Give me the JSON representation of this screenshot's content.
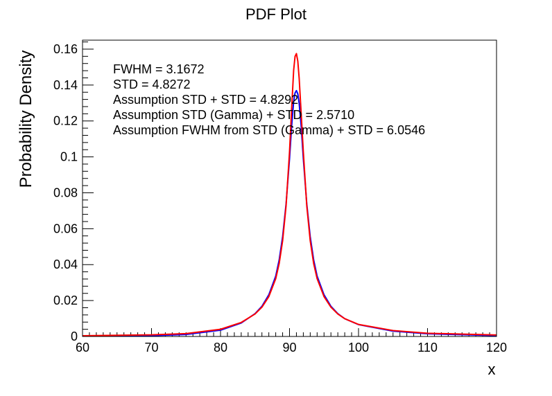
{
  "chart_data": {
    "type": "line",
    "title": "PDF Plot",
    "xlabel": "x",
    "ylabel": "Probability Density",
    "xlim": [
      60,
      120
    ],
    "ylim": [
      0,
      0.165
    ],
    "x_ticks": [
      "60",
      "70",
      "80",
      "90",
      "100",
      "110",
      "120"
    ],
    "y_ticks": [
      "0",
      "0.02",
      "0.04",
      "0.06",
      "0.08",
      "0.1",
      "0.12",
      "0.14",
      "0.16"
    ],
    "annotations": [
      "FWHM = 3.1672",
      "STD = 4.8272",
      "Assumption STD + STD = 4.8292",
      "Assumption STD (Gamma) + STD = 2.5710",
      "Assumption FWHM from STD (Gamma) + STD = 6.0546"
    ],
    "grid": false,
    "series": [
      {
        "color": "#0000ff",
        "x": [
          60,
          70,
          75,
          80,
          83,
          85,
          86,
          87,
          88,
          88.5,
          89,
          89.5,
          90,
          90.3,
          90.6,
          90.8,
          91,
          91.2,
          91.4,
          91.7,
          92,
          92.5,
          93,
          93.5,
          94,
          95,
          96,
          97,
          98,
          100,
          105,
          110,
          120
        ],
        "y": [
          0.0002,
          0.0005,
          0.0011,
          0.0035,
          0.0075,
          0.0127,
          0.0168,
          0.0232,
          0.0336,
          0.0426,
          0.0555,
          0.0738,
          0.099,
          0.1168,
          0.1309,
          0.1356,
          0.1369,
          0.1351,
          0.1298,
          0.1166,
          0.099,
          0.0738,
          0.0555,
          0.0426,
          0.0336,
          0.0232,
          0.0168,
          0.0127,
          0.0099,
          0.0066,
          0.003,
          0.0015,
          0.0005
        ]
      },
      {
        "color": "#ff0000",
        "x": [
          60,
          70,
          75,
          80,
          83,
          85,
          86,
          87,
          88,
          88.5,
          89,
          89.5,
          90,
          90.3,
          90.6,
          90.8,
          91,
          91.2,
          91.4,
          91.7,
          92,
          92.5,
          93,
          93.5,
          94,
          95,
          96,
          97,
          98,
          100,
          105,
          110,
          120
        ],
        "y": [
          0.0004,
          0.0009,
          0.0016,
          0.004,
          0.0078,
          0.0125,
          0.0163,
          0.0222,
          0.0322,
          0.0406,
          0.0533,
          0.0727,
          0.1028,
          0.1265,
          0.1483,
          0.1559,
          0.1575,
          0.1533,
          0.1437,
          0.1234,
          0.1028,
          0.0727,
          0.0533,
          0.0406,
          0.0322,
          0.0222,
          0.0163,
          0.0125,
          0.0099,
          0.0067,
          0.0033,
          0.0018,
          0.0008
        ]
      }
    ]
  }
}
